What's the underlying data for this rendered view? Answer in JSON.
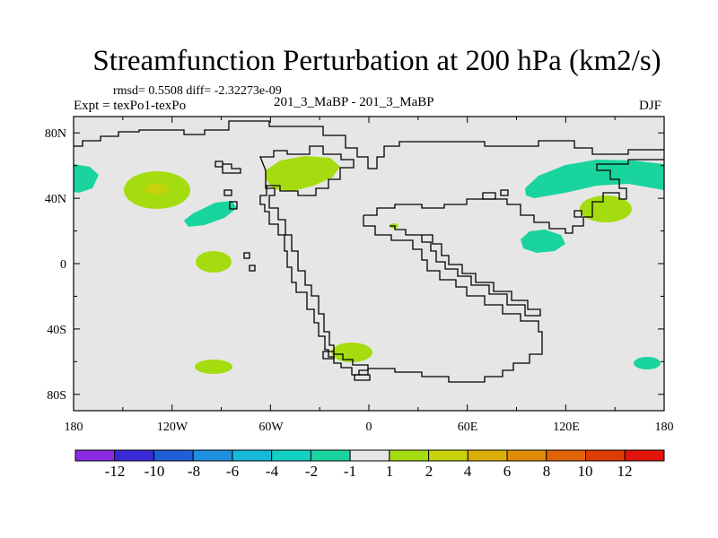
{
  "title": "Streamfunction Perturbation at 200 hPa (km2/s)",
  "stats_text": "rmsd= 0.5508 diff= -2.32273e-09",
  "experiment_text": "Expt = texPo1-texPo",
  "center_text": "201_3_MaBP - 201_3_MaBP",
  "season_text": "DJF",
  "map_style": {
    "background": "#e6e6e6",
    "coastline_color": "#000000"
  },
  "axes": {
    "x_ticks": [
      "180",
      "120W",
      "60W",
      "0",
      "60E",
      "120E",
      "180"
    ],
    "y_ticks": [
      "80N",
      "40N",
      "0",
      "40S",
      "80S"
    ]
  },
  "colorbar": {
    "colors": [
      "#8a2be2",
      "#3a2ad6",
      "#1e5fd6",
      "#1f90e0",
      "#17b8d8",
      "#13d0c4",
      "#1ad49e",
      "#e6e6e6",
      "#a4dc10",
      "#c8d20a",
      "#dcaf08",
      "#e08c08",
      "#e06408",
      "#e03c08",
      "#e0140a"
    ],
    "labels": [
      "-12",
      "-10",
      "-8",
      "-6",
      "-4",
      "-2",
      "-1",
      "1",
      "2",
      "4",
      "6",
      "8",
      "10",
      "12"
    ]
  },
  "anomalies": [
    {
      "sign": "negative",
      "level": "-1",
      "color": "#1ad49e"
    },
    {
      "sign": "positive",
      "level": "2",
      "color": "#a4dc10"
    },
    {
      "sign": "positive",
      "level": "4",
      "color": "#c8d20a"
    }
  ]
}
